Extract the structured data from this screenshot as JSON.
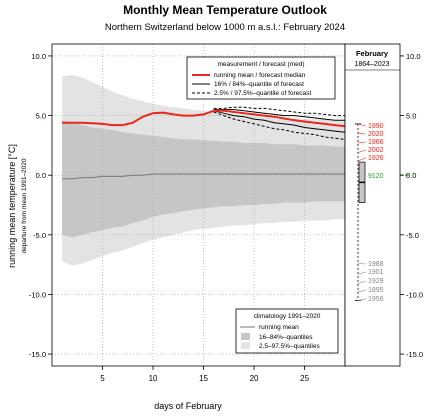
{
  "chart_data": {
    "type": "line",
    "title": "Monthly Mean Temperature Outlook",
    "subtitle": "Northern Switzerland below 1000 m a.s.l.: February 2024",
    "ylabel": "running mean temperature [°C]",
    "ylabel_sub": "departure from mean 1991–2020",
    "xlabel": "days of February",
    "xlim": [
      0,
      29
    ],
    "ylim": [
      -16,
      11
    ],
    "y_ticks": [
      10.0,
      5.0,
      0.0,
      -5.0,
      -10.0,
      -15.0
    ],
    "y_tick_labels": [
      "10.0",
      "5.0",
      "0.0",
      "-5.0",
      "-10.0",
      "-15.0"
    ],
    "x_ticks": [
      5,
      10,
      15,
      20,
      25
    ],
    "x_tick_labels": [
      "5",
      "10",
      "15",
      "20",
      "25"
    ],
    "grid": true,
    "days": [
      1,
      2,
      3,
      4,
      5,
      6,
      7,
      8,
      9,
      10,
      11,
      12,
      13,
      14,
      15,
      16,
      17,
      18,
      19,
      20,
      21,
      22,
      23,
      24,
      25,
      26,
      27,
      28,
      29
    ],
    "climatology": {
      "running_mean": [
        -0.3,
        -0.3,
        -0.2,
        -0.2,
        -0.1,
        -0.1,
        -0.1,
        0.0,
        0.0,
        0.1,
        0.1,
        0.1,
        0.1,
        0.1,
        0.1,
        0.1,
        0.1,
        0.1,
        0.1,
        0.1,
        0.1,
        0.1,
        0.1,
        0.1,
        0.1,
        0.1,
        0.1,
        0.1,
        0.1
      ],
      "q16": [
        -5.0,
        -5.2,
        -5.0,
        -4.8,
        -4.6,
        -4.4,
        -4.3,
        -4.0,
        -3.8,
        -3.5,
        -3.3,
        -3.2,
        -3.0,
        -2.9,
        -2.8,
        -2.7,
        -2.6,
        -2.6,
        -2.5,
        -2.5,
        -2.4,
        -2.4,
        -2.3,
        -2.3,
        -2.3,
        -2.2,
        -2.2,
        -2.2,
        -2.2
      ],
      "q84": [
        4.6,
        4.4,
        4.2,
        4.0,
        3.9,
        3.8,
        3.6,
        3.5,
        3.4,
        3.3,
        3.2,
        3.1,
        3.0,
        3.0,
        2.9,
        2.9,
        2.8,
        2.8,
        2.7,
        2.7,
        2.7,
        2.6,
        2.6,
        2.6,
        2.5,
        2.5,
        2.5,
        2.4,
        2.4
      ],
      "q2_5": [
        -7.2,
        -7.6,
        -7.4,
        -7.1,
        -6.8,
        -6.5,
        -6.3,
        -6.0,
        -5.7,
        -5.4,
        -5.2,
        -5.0,
        -4.8,
        -4.6,
        -4.5,
        -4.4,
        -4.3,
        -4.2,
        -4.2,
        -4.1,
        -4.0,
        -4.0,
        -3.9,
        -3.9,
        -3.8,
        -3.8,
        -3.8,
        -3.7,
        -3.7
      ],
      "q97_5": [
        8.3,
        8.4,
        8.2,
        7.8,
        7.4,
        7.0,
        6.7,
        6.4,
        6.2,
        6.0,
        5.8,
        5.7,
        5.6,
        5.5,
        5.4,
        5.3,
        5.2,
        5.1,
        5.0,
        5.0,
        4.9,
        4.9,
        4.8,
        4.8,
        4.7,
        4.7,
        4.7,
        4.6,
        4.6
      ]
    },
    "measurement_and_forecast": {
      "running_mean_median": [
        4.4,
        4.4,
        4.4,
        4.35,
        4.3,
        4.2,
        4.2,
        4.4,
        4.9,
        5.2,
        5.25,
        5.1,
        5.0,
        5.0,
        5.1,
        5.4,
        5.4,
        5.3,
        5.2,
        5.1,
        5.0,
        4.9,
        4.75,
        4.6,
        4.5,
        4.4,
        4.3,
        4.2,
        4.1
      ],
      "forecast_start_day": 16,
      "q16": [
        5.4,
        5.2,
        5.0,
        4.9,
        4.7,
        4.6,
        4.4,
        4.3,
        4.2,
        4.0,
        3.9,
        3.8,
        3.7,
        3.6
      ],
      "q84": [
        5.5,
        5.5,
        5.5,
        5.4,
        5.3,
        5.2,
        5.1,
        5.0,
        5.0,
        4.9,
        4.8,
        4.7,
        4.6,
        4.6
      ],
      "q2_5": [
        5.3,
        5.0,
        4.7,
        4.5,
        4.3,
        4.1,
        3.9,
        3.8,
        3.6,
        3.5,
        3.4,
        3.2,
        3.1,
        3.0
      ],
      "q97_5": [
        5.6,
        5.6,
        5.7,
        5.7,
        5.6,
        5.6,
        5.5,
        5.4,
        5.3,
        5.2,
        5.2,
        5.1,
        5.0,
        5.0
      ]
    },
    "legend_top": {
      "title": "measurement / forecast (med)",
      "entries": [
        "running mean / forecast median",
        "16% / 84%–quantile of forecast",
        "2.5% / 97.5%–quantile of forecast"
      ]
    },
    "legend_bottom": {
      "title": "climatology 1991–2020",
      "entries": [
        "running mean",
        "16–84%–quantiles",
        "2.5–97.5%–quantiles"
      ]
    },
    "february_panel": {
      "title": "February",
      "subtitle": "1864–2023",
      "whisker_top": 4.3,
      "box_top": 1.1,
      "box_bottom": -2.3,
      "whisker_bottom": -10.5,
      "median": -0.6,
      "current_value": 0.0,
      "current_label": "9120",
      "warm_years": [
        {
          "year": "1990",
          "value": 4.3
        },
        {
          "year": "2020",
          "value": 3.5
        },
        {
          "year": "1966",
          "value": 2.7
        },
        {
          "year": "2002",
          "value": 1.9
        },
        {
          "year": "1926",
          "value": 1.2
        }
      ],
      "cold_years": [
        {
          "year": "1988",
          "value": -7.4
        },
        {
          "year": "1901",
          "value": -8.3
        },
        {
          "year": "1929",
          "value": -9.1
        },
        {
          "year": "1895",
          "value": -9.8
        },
        {
          "year": "1956",
          "value": -10.5
        }
      ]
    },
    "colors": {
      "median_line": "#e8281c",
      "forecast_quantiles": "#000000",
      "clim_outer_band": "#e3e3e3",
      "clim_inner_band": "#c6c6c6",
      "clim_mean": "#777777",
      "warm_years": "#e8281c",
      "cold_years": "#888888",
      "current_value": "#2e9b2e",
      "grid": "#a0a0a0"
    }
  }
}
